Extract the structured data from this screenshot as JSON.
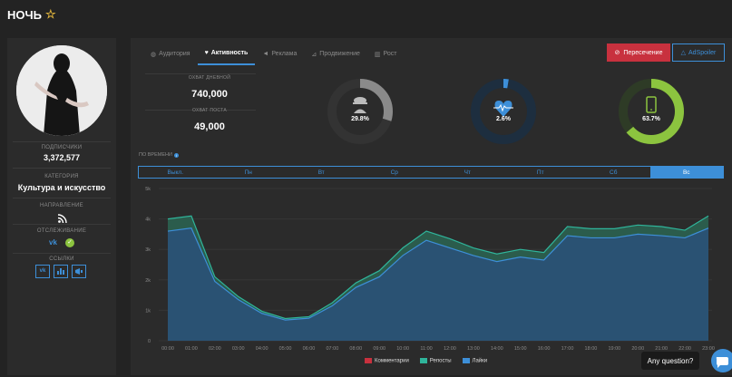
{
  "page": {
    "title": "НОЧЬ"
  },
  "sidebar": {
    "subscribers_label": "ПОДПИСЧИКИ",
    "subscribers_value": "3,372,577",
    "category_label": "КАТЕГОРИЯ",
    "category_value": "Культура и искусство",
    "direction_label": "НАПРАВЛЕНИЕ",
    "tracking_label": "ОТСЛЕЖИВАНИЕ",
    "links_label": "ССЫЛКИ"
  },
  "tabs": [
    {
      "label": "Аудитория",
      "icon": "globe-icon"
    },
    {
      "label": "Активность",
      "icon": "heart-icon"
    },
    {
      "label": "Реклама",
      "icon": "megaphone-icon"
    },
    {
      "label": "Продвижение",
      "icon": "chart-icon"
    },
    {
      "label": "Рост",
      "icon": "bar-chart-icon"
    }
  ],
  "buttons": {
    "intersection": "Пересечение",
    "adspoiler": "AdSpoiler"
  },
  "stats": {
    "daily_reach_label": "ОХВАТ ДНЕВНОЙ",
    "daily_reach_value": "740,000",
    "post_reach_label": "ОХВАТ ПОСТА",
    "post_reach_value": "49,000"
  },
  "rings": [
    {
      "label": "29.8%",
      "value": 0.298,
      "color": "#8a8a8a",
      "icon": "spy-icon"
    },
    {
      "label": "2.6%",
      "value": 0.026,
      "color": "#3d8fd8",
      "icon": "heartbeat-icon"
    },
    {
      "label": "63.7%",
      "value": 0.637,
      "color": "#8cc43f",
      "icon": "phone-icon"
    }
  ],
  "by_time_label": "ПО ВРЕМЕНИ",
  "days": [
    "Выкл.",
    "Пн",
    "Вт",
    "Ср",
    "Чт",
    "Пт",
    "Сб",
    "Вс"
  ],
  "active_day": "Вс",
  "legend": [
    {
      "name": "Комментарии",
      "color": "#c8313e"
    },
    {
      "name": "Репосты",
      "color": "#2fb59b"
    },
    {
      "name": "Лайки",
      "color": "#3d8fd8"
    }
  ],
  "help": {
    "label": "Any question?"
  },
  "chart_data": {
    "type": "area",
    "x": [
      "00:00",
      "01:00",
      "02:00",
      "03:00",
      "04:00",
      "05:00",
      "06:00",
      "07:00",
      "08:00",
      "09:00",
      "10:00",
      "11:00",
      "12:00",
      "13:00",
      "14:00",
      "15:00",
      "16:00",
      "17:00",
      "18:00",
      "19:00",
      "20:00",
      "21:00",
      "22:00",
      "23:00"
    ],
    "y_ticks": [
      "0",
      "1k",
      "2k",
      "3k",
      "4k",
      "5k"
    ],
    "ylim": [
      0,
      5000
    ],
    "series": [
      {
        "name": "Лайки",
        "color": "#3d8fd8",
        "values": [
          3600,
          3700,
          1950,
          1350,
          900,
          680,
          740,
          1150,
          1750,
          2100,
          2800,
          3300,
          3050,
          2800,
          2600,
          2750,
          2650,
          3450,
          3380,
          3380,
          3500,
          3450,
          3380,
          3700
        ]
      },
      {
        "name": "Репосты",
        "color": "#2fb59b",
        "values": [
          400,
          400,
          150,
          100,
          70,
          50,
          50,
          100,
          150,
          200,
          250,
          300,
          300,
          250,
          250,
          250,
          250,
          300,
          300,
          300,
          300,
          300,
          250,
          400
        ]
      },
      {
        "name": "Комментарии",
        "color": "#c8313e",
        "values": [
          0,
          0,
          0,
          0,
          0,
          0,
          0,
          0,
          0,
          0,
          0,
          0,
          0,
          0,
          0,
          0,
          0,
          0,
          0,
          0,
          0,
          0,
          0,
          0
        ]
      }
    ]
  }
}
